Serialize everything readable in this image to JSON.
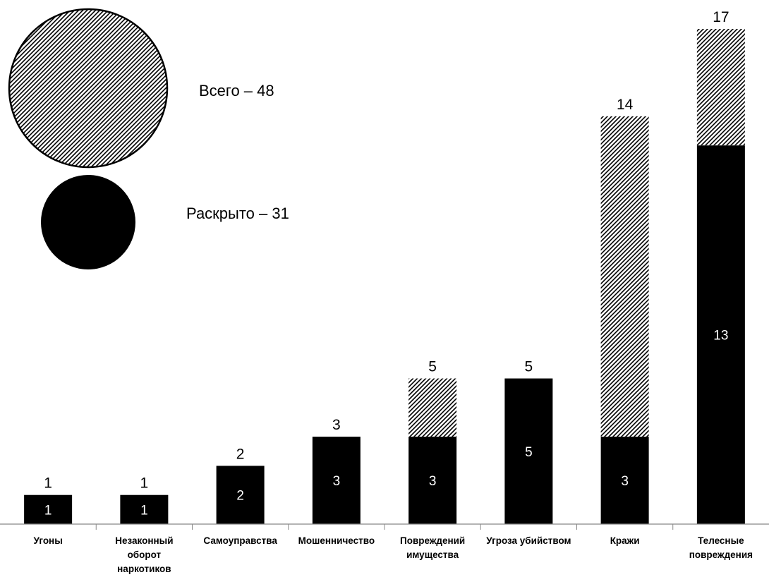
{
  "chart_data": {
    "type": "bar",
    "stacked": true,
    "categories": [
      [
        "Угоны"
      ],
      [
        "Незаконный",
        "оборот",
        "наркотиков"
      ],
      [
        "Самоуправства"
      ],
      [
        "Мошенничество"
      ],
      [
        "Повреждений",
        "имущества"
      ],
      [
        "Угроза убийством"
      ],
      [
        "Кражи"
      ],
      [
        "Телесные",
        "повреждения"
      ]
    ],
    "totals": [
      1,
      1,
      2,
      3,
      5,
      5,
      14,
      17
    ],
    "solved": [
      1,
      1,
      2,
      3,
      3,
      5,
      3,
      13
    ],
    "ylim": [
      0,
      17
    ],
    "legend": {
      "total": "Всего – 48",
      "solved": "Раскрыто – 31"
    },
    "legend_placement": "top-left",
    "grid": false,
    "colors": {
      "solved": "#000000",
      "unsolved_hatch": "#000000",
      "background": "#ffffff"
    }
  }
}
